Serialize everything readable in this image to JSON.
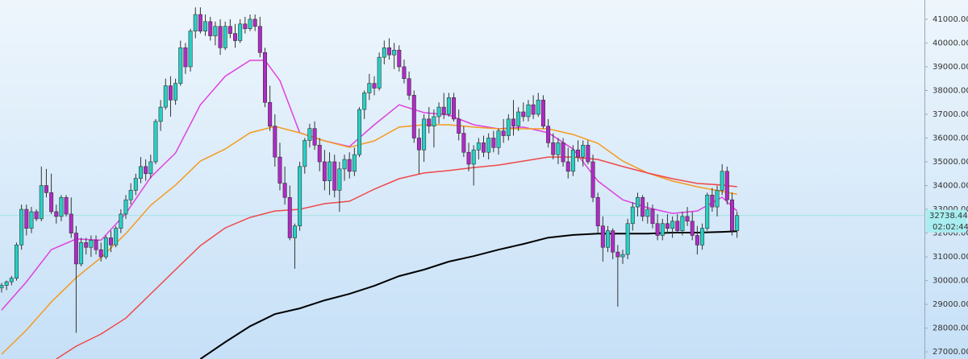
{
  "chart_data": {
    "type": "candlestick",
    "up_color": "#26d0c6",
    "down_color": "#b02ac6",
    "ylim": [
      26700,
      41810
    ],
    "yticks": [
      {
        "value": 27000,
        "label": "27000.00"
      },
      {
        "value": 28000,
        "label": "28000.00"
      },
      {
        "value": 29000,
        "label": "29000.00"
      },
      {
        "value": 30000,
        "label": "30000.00"
      },
      {
        "value": 31000,
        "label": "31000.00"
      },
      {
        "value": 32000,
        "label": "32000.00"
      },
      {
        "value": 33000,
        "label": "33000.00"
      },
      {
        "value": 34000,
        "label": "34000.00"
      },
      {
        "value": 35000,
        "label": "35000.00"
      },
      {
        "value": 36000,
        "label": "36000.00"
      },
      {
        "value": 37000,
        "label": "37000.00"
      },
      {
        "value": 38000,
        "label": "38000.00"
      },
      {
        "value": 39000,
        "label": "39000.00"
      },
      {
        "value": 40000,
        "label": "40000.00"
      },
      {
        "value": 41000,
        "label": "41000.00"
      }
    ],
    "last_price": 32738.44,
    "countdown": "02:02:44",
    "candles": [
      [
        29700,
        29900,
        29500,
        29800
      ],
      [
        29800,
        30000,
        29600,
        29950
      ],
      [
        29950,
        30200,
        29800,
        30100
      ],
      [
        30100,
        31600,
        30000,
        31500
      ],
      [
        31500,
        33200,
        31300,
        33000
      ],
      [
        33000,
        33200,
        31900,
        32200
      ],
      [
        32200,
        33100,
        32000,
        32900
      ],
      [
        32900,
        33000,
        32500,
        32600
      ],
      [
        32600,
        34800,
        32500,
        34000
      ],
      [
        34000,
        34700,
        33500,
        33700
      ],
      [
        33700,
        34500,
        32800,
        32900
      ],
      [
        32900,
        33200,
        32400,
        32700
      ],
      [
        32700,
        33600,
        32500,
        33500
      ],
      [
        33500,
        33600,
        32700,
        32800
      ],
      [
        32800,
        33500,
        31800,
        32000
      ],
      [
        32000,
        32300,
        27800,
        30700
      ],
      [
        30700,
        31800,
        30600,
        31600
      ],
      [
        31600,
        31800,
        31100,
        31400
      ],
      [
        31400,
        31900,
        31000,
        31700
      ],
      [
        31700,
        31900,
        31100,
        31300
      ],
      [
        31300,
        31600,
        30800,
        31000
      ],
      [
        31000,
        31900,
        30900,
        31800
      ],
      [
        31800,
        32100,
        31200,
        31500
      ],
      [
        31500,
        32300,
        31400,
        32200
      ],
      [
        32200,
        33000,
        32000,
        32800
      ],
      [
        32800,
        33600,
        32600,
        33400
      ],
      [
        33400,
        34100,
        33200,
        33800
      ],
      [
        33800,
        34500,
        33600,
        34300
      ],
      [
        34300,
        35200,
        34100,
        34800
      ],
      [
        34800,
        35100,
        34200,
        34500
      ],
      [
        34500,
        35300,
        34300,
        35000
      ],
      [
        35000,
        36800,
        34900,
        36700
      ],
      [
        36700,
        37600,
        36300,
        37300
      ],
      [
        37300,
        38500,
        37200,
        38200
      ],
      [
        38200,
        38600,
        36900,
        37600
      ],
      [
        37600,
        38500,
        37400,
        38300
      ],
      [
        38300,
        40100,
        38200,
        39800
      ],
      [
        39800,
        40000,
        38700,
        39000
      ],
      [
        39000,
        40600,
        38800,
        40500
      ],
      [
        40500,
        41500,
        40200,
        41200
      ],
      [
        41200,
        41500,
        40400,
        40500
      ],
      [
        40500,
        41200,
        40300,
        40900
      ],
      [
        40900,
        41100,
        40100,
        40300
      ],
      [
        40300,
        40900,
        39900,
        40700
      ],
      [
        40700,
        41000,
        39500,
        39800
      ],
      [
        39800,
        40900,
        39700,
        40700
      ],
      [
        40700,
        41000,
        40200,
        40400
      ],
      [
        40400,
        40800,
        39800,
        40100
      ],
      [
        40100,
        41000,
        40000,
        40800
      ],
      [
        40800,
        41100,
        40400,
        40600
      ],
      [
        40600,
        41200,
        40500,
        41000
      ],
      [
        41000,
        41200,
        40500,
        40700
      ],
      [
        40700,
        41100,
        39400,
        39600
      ],
      [
        39600,
        39800,
        37300,
        37500
      ],
      [
        37500,
        38200,
        36300,
        36500
      ],
      [
        36500,
        37000,
        34800,
        35200
      ],
      [
        35200,
        35800,
        33800,
        34100
      ],
      [
        34100,
        34800,
        33200,
        33500
      ],
      [
        33500,
        34000,
        31700,
        31800
      ],
      [
        31800,
        32400,
        30500,
        32300
      ],
      [
        32300,
        35000,
        32100,
        34800
      ],
      [
        34800,
        36000,
        34500,
        35900
      ],
      [
        35900,
        36600,
        35600,
        36400
      ],
      [
        36400,
        36700,
        35500,
        35700
      ],
      [
        35700,
        36000,
        34600,
        35000
      ],
      [
        35000,
        35500,
        33800,
        34200
      ],
      [
        34200,
        35400,
        33600,
        35000
      ],
      [
        35000,
        35300,
        33500,
        33800
      ],
      [
        33800,
        35000,
        32900,
        34700
      ],
      [
        34700,
        35300,
        34200,
        35100
      ],
      [
        35100,
        35400,
        34300,
        34600
      ],
      [
        34600,
        35600,
        34400,
        35300
      ],
      [
        35300,
        37300,
        35200,
        37200
      ],
      [
        37200,
        38000,
        36800,
        37900
      ],
      [
        37900,
        38700,
        37600,
        38300
      ],
      [
        38300,
        38600,
        37800,
        38100
      ],
      [
        38100,
        39600,
        38000,
        39400
      ],
      [
        39400,
        40100,
        39100,
        39800
      ],
      [
        39800,
        40200,
        39300,
        39500
      ],
      [
        39500,
        40000,
        38900,
        39700
      ],
      [
        39700,
        39900,
        38800,
        39000
      ],
      [
        39000,
        39300,
        38300,
        38500
      ],
      [
        38500,
        38800,
        37600,
        37800
      ],
      [
        37800,
        38000,
        35800,
        36000
      ],
      [
        36000,
        36400,
        34500,
        35500
      ],
      [
        35500,
        37000,
        35000,
        36800
      ],
      [
        36800,
        37300,
        36200,
        36500
      ],
      [
        36500,
        37200,
        35600,
        36900
      ],
      [
        36900,
        37500,
        36600,
        37300
      ],
      [
        37300,
        37900,
        36800,
        37000
      ],
      [
        37000,
        37900,
        36900,
        37700
      ],
      [
        37700,
        37900,
        36700,
        36800
      ],
      [
        36800,
        37200,
        35900,
        36200
      ],
      [
        36200,
        36500,
        35200,
        35400
      ],
      [
        35400,
        35800,
        34600,
        34900
      ],
      [
        34900,
        35700,
        34000,
        35500
      ],
      [
        35500,
        36000,
        35100,
        35800
      ],
      [
        35800,
        36100,
        35200,
        35400
      ],
      [
        35400,
        36200,
        35100,
        36000
      ],
      [
        36000,
        36300,
        35400,
        35600
      ],
      [
        35600,
        36400,
        35300,
        36300
      ],
      [
        36300,
        36800,
        35800,
        36100
      ],
      [
        36100,
        37000,
        35900,
        36800
      ],
      [
        36800,
        37600,
        36100,
        36500
      ],
      [
        36500,
        37300,
        36300,
        37100
      ],
      [
        37100,
        37500,
        36700,
        36900
      ],
      [
        36900,
        37600,
        36700,
        37400
      ],
      [
        37400,
        37800,
        36800,
        37000
      ],
      [
        37000,
        37900,
        36900,
        37600
      ],
      [
        37600,
        37800,
        36400,
        36500
      ],
      [
        36500,
        36800,
        35600,
        35800
      ],
      [
        35800,
        36200,
        35100,
        35300
      ],
      [
        35300,
        36000,
        34900,
        35800
      ],
      [
        35800,
        36000,
        34800,
        35000
      ],
      [
        35000,
        35600,
        34300,
        34600
      ],
      [
        34600,
        35700,
        34400,
        35500
      ],
      [
        35500,
        35900,
        35000,
        35200
      ],
      [
        35200,
        35900,
        34800,
        35700
      ],
      [
        35700,
        35900,
        34900,
        35000
      ],
      [
        35000,
        35300,
        33300,
        33500
      ],
      [
        33500,
        33700,
        32000,
        32300
      ],
      [
        32300,
        32700,
        30800,
        31400
      ],
      [
        31400,
        32300,
        31200,
        32100
      ],
      [
        32100,
        32200,
        30900,
        31200
      ],
      [
        31200,
        31500,
        28900,
        31000
      ],
      [
        31000,
        31300,
        30700,
        31100
      ],
      [
        31100,
        32600,
        30900,
        32400
      ],
      [
        32400,
        33300,
        32100,
        33100
      ],
      [
        33100,
        33700,
        32700,
        33500
      ],
      [
        33500,
        33600,
        32500,
        32700
      ],
      [
        32700,
        33300,
        32400,
        33000
      ],
      [
        33000,
        33200,
        32200,
        32400
      ],
      [
        32400,
        32800,
        31700,
        31900
      ],
      [
        31900,
        32600,
        31700,
        32400
      ],
      [
        32400,
        32800,
        32000,
        32200
      ],
      [
        32200,
        32700,
        31800,
        32500
      ],
      [
        32500,
        32800,
        32000,
        32100
      ],
      [
        32100,
        32900,
        31900,
        32700
      ],
      [
        32700,
        33100,
        32300,
        32500
      ],
      [
        32500,
        32900,
        31700,
        31900
      ],
      [
        31900,
        32300,
        31100,
        31500
      ],
      [
        31500,
        32400,
        31300,
        32200
      ],
      [
        32200,
        33700,
        32100,
        33600
      ],
      [
        33600,
        33900,
        32900,
        33100
      ],
      [
        33100,
        34000,
        32700,
        33800
      ],
      [
        33800,
        34900,
        33600,
        34600
      ],
      [
        34600,
        34800,
        33200,
        33400
      ],
      [
        33400,
        33700,
        31900,
        32100
      ],
      [
        32100,
        32900,
        31800,
        32738.44
      ]
    ],
    "series": [
      {
        "color": "#e040e0",
        "x": [
          0,
          5,
          10,
          15,
          20,
          25,
          30,
          35,
          40,
          45,
          50,
          53,
          56,
          60,
          65,
          70,
          75,
          80,
          85,
          90,
          95,
          100,
          105,
          110,
          115,
          120,
          125,
          130,
          135,
          140,
          145,
          148
        ],
        "values": [
          28760,
          29950,
          31300,
          31750,
          31700,
          32830,
          34350,
          35370,
          37400,
          38600,
          39270,
          39270,
          38420,
          36220,
          35880,
          35640,
          36560,
          37400,
          37070,
          36970,
          36560,
          36390,
          36460,
          36220,
          35540,
          34190,
          33400,
          33070,
          32830,
          32930,
          33510,
          32930
        ]
      },
      {
        "color": "#f59a1e",
        "x": [
          0,
          5,
          10,
          15,
          20,
          25,
          30,
          35,
          40,
          45,
          50,
          55,
          60,
          65,
          70,
          75,
          80,
          85,
          90,
          95,
          100,
          105,
          110,
          115,
          120,
          125,
          130,
          135,
          140,
          145,
          148
        ],
        "values": [
          26900,
          27920,
          29100,
          30120,
          30970,
          31980,
          33170,
          34020,
          35030,
          35540,
          36220,
          36490,
          36220,
          35880,
          35610,
          35880,
          36460,
          36560,
          36560,
          36460,
          36390,
          36390,
          36390,
          36150,
          35780,
          35030,
          34530,
          34190,
          33950,
          33750,
          33640
        ]
      },
      {
        "color": "#f04848",
        "x": [
          11,
          15,
          20,
          25,
          30,
          35,
          40,
          45,
          50,
          55,
          60,
          65,
          70,
          75,
          80,
          85,
          90,
          95,
          100,
          105,
          110,
          115,
          120,
          125,
          130,
          135,
          140,
          145,
          148
        ],
        "values": [
          26700,
          27240,
          27750,
          28420,
          29440,
          30460,
          31470,
          32220,
          32660,
          32930,
          33000,
          33240,
          33340,
          33850,
          34290,
          34530,
          34630,
          34760,
          34860,
          35030,
          35200,
          35200,
          35100,
          34800,
          34530,
          34290,
          34090,
          34020,
          33950
        ]
      },
      {
        "color": "#000000",
        "x": [
          40,
          45,
          50,
          55,
          60,
          65,
          70,
          75,
          80,
          85,
          90,
          95,
          100,
          105,
          110,
          115,
          120,
          125,
          130,
          135,
          140,
          145,
          148
        ],
        "values": [
          26700,
          27410,
          28080,
          28590,
          28830,
          29170,
          29440,
          29780,
          30190,
          30460,
          30800,
          31030,
          31300,
          31540,
          31810,
          31920,
          31980,
          31980,
          31980,
          32020,
          32020,
          32050,
          32080
        ]
      }
    ]
  }
}
